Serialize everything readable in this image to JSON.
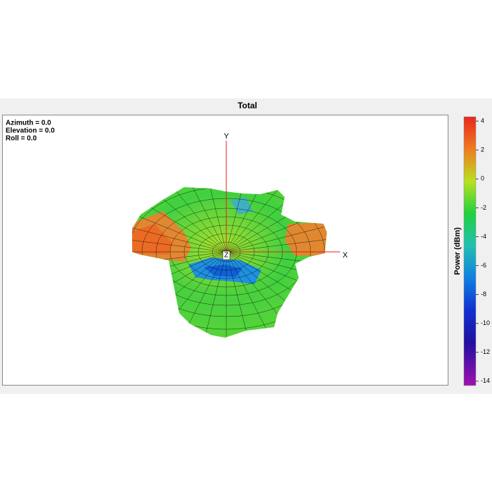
{
  "window": {
    "title": "Total"
  },
  "view": {
    "azimuth": "Azimuth = 0.0",
    "elevation": "Elevation = 0.0",
    "roll": "Roll = 0.0"
  },
  "axes": {
    "x": "X",
    "y": "Y",
    "z": "Z"
  },
  "colorbar": {
    "label": "Power  (dBm)",
    "range": [
      -14.3,
      4.3
    ],
    "ticks": [
      4,
      2,
      0,
      -2,
      -4,
      -6,
      -8,
      -10,
      -12,
      -14
    ]
  }
}
